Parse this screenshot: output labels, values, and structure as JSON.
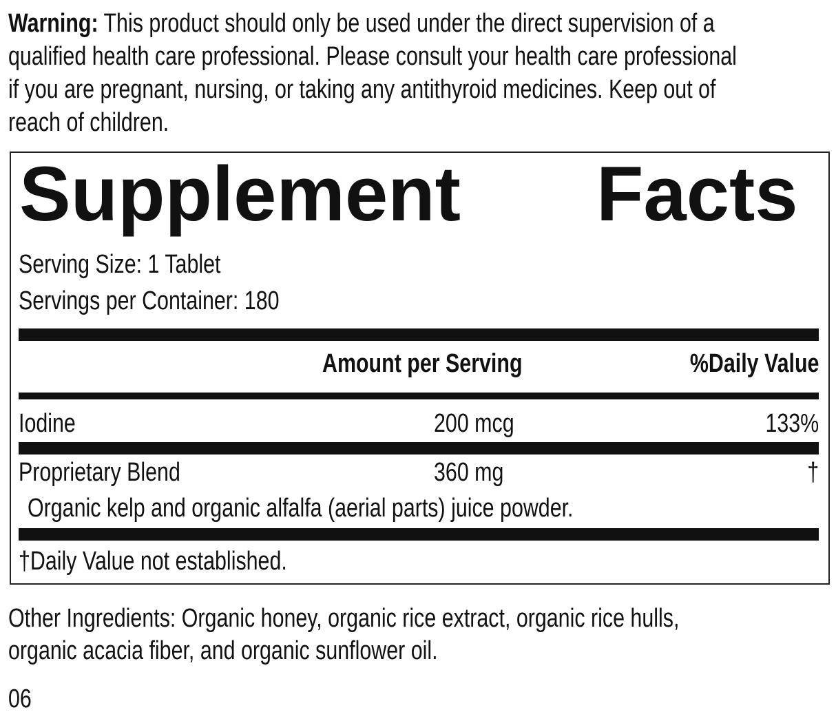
{
  "warning": {
    "label": "Warning:",
    "lines": [
      " This product should only be used under the direct supervision of a",
      "qualified health care professional. Please consult your health care professional",
      "if you are pregnant, nursing, or taking any antithyroid medicines. Keep out of",
      "reach of children."
    ]
  },
  "facts": {
    "title_word1": "Supplement",
    "title_word2": "Facts",
    "serving_size": "Serving Size: 1 Tablet",
    "servings_per_container": "Servings per Container: 180",
    "header_amount": "Amount per Serving",
    "header_dv": "%Daily Value",
    "rows": [
      {
        "name": "Iodine",
        "amount": "200 mcg",
        "dv": "133%"
      },
      {
        "name": "Proprietary Blend",
        "amount": "360 mg",
        "dv": "†",
        "detail": "Organic kelp and organic alfalfa (aerial parts) juice powder."
      }
    ],
    "footnote": "†Daily Value not established."
  },
  "other_ingredients": [
    "Other Ingredients: Organic honey, organic rice extract, organic rice hulls,",
    "organic acacia fiber, and organic sunflower oil."
  ],
  "code": "06"
}
